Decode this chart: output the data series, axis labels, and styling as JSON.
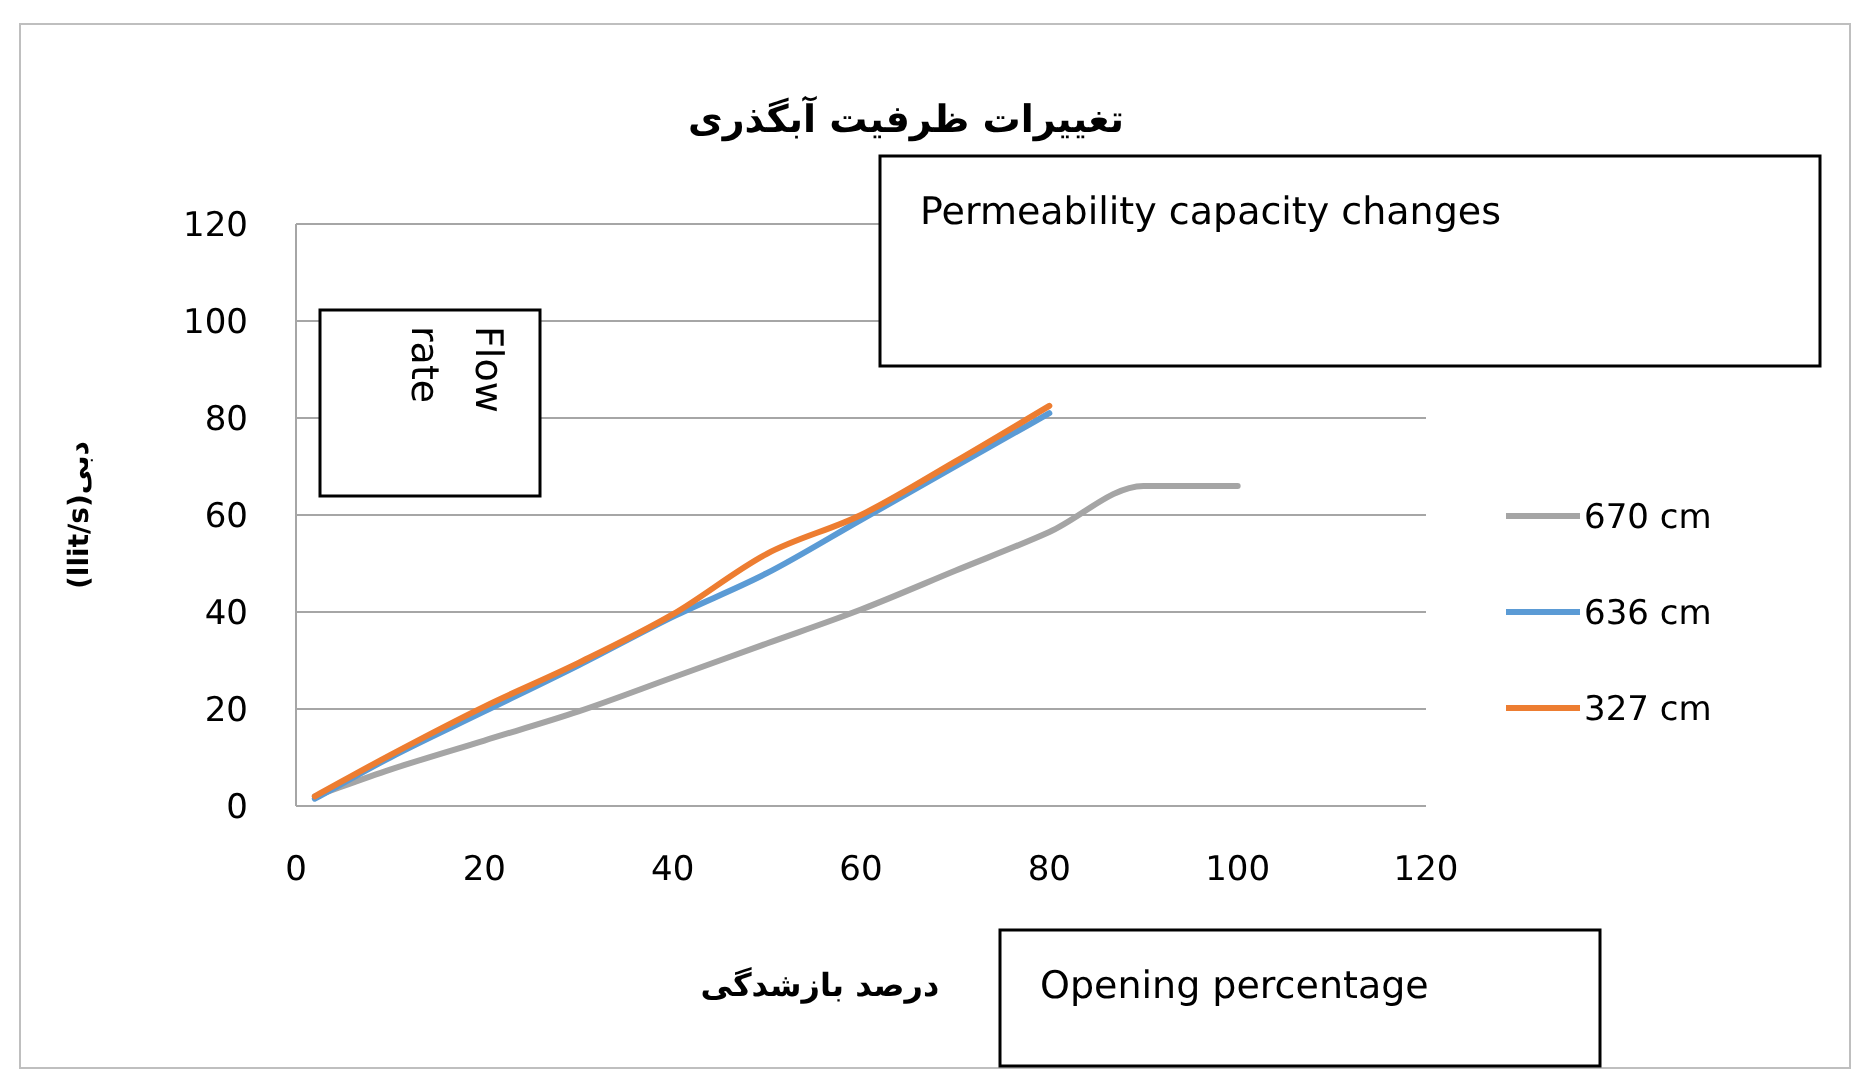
{
  "chart_data": {
    "type": "line",
    "title": "تغییرات ظرفیت آبگذری",
    "xlabel": "درصد بازشدگی",
    "ylabel": "دبی(llit/s)",
    "annotations": [
      "Permeability capacity changes",
      "Opening percentage",
      "Flow rate"
    ],
    "x": [
      2,
      10,
      20,
      30,
      40,
      50,
      60,
      70,
      80,
      90,
      100
    ],
    "series": [
      {
        "name": "670 cm",
        "color": "#a5a5a5",
        "values": [
          2,
          7.5,
          13.5,
          19.5,
          26.5,
          33.5,
          40.5,
          48.5,
          56.5,
          66,
          66
        ]
      },
      {
        "name": "636 cm",
        "color": "#5b9bd5",
        "values": [
          1.5,
          10,
          19.5,
          29,
          39,
          48,
          59,
          70,
          81,
          null,
          null
        ]
      },
      {
        "name": "327 cm",
        "color": "#ed7d31",
        "values": [
          2,
          10.5,
          20.5,
          29.5,
          39.5,
          52,
          60,
          71,
          82.5,
          null,
          null
        ]
      }
    ],
    "xlim": [
      0,
      120
    ],
    "ylim": [
      0,
      120
    ],
    "xticks": [
      0,
      20,
      40,
      60,
      80,
      100,
      120
    ],
    "yticks": [
      0,
      20,
      40,
      60,
      80,
      100,
      120
    ],
    "grid": "y",
    "legend": "right"
  }
}
